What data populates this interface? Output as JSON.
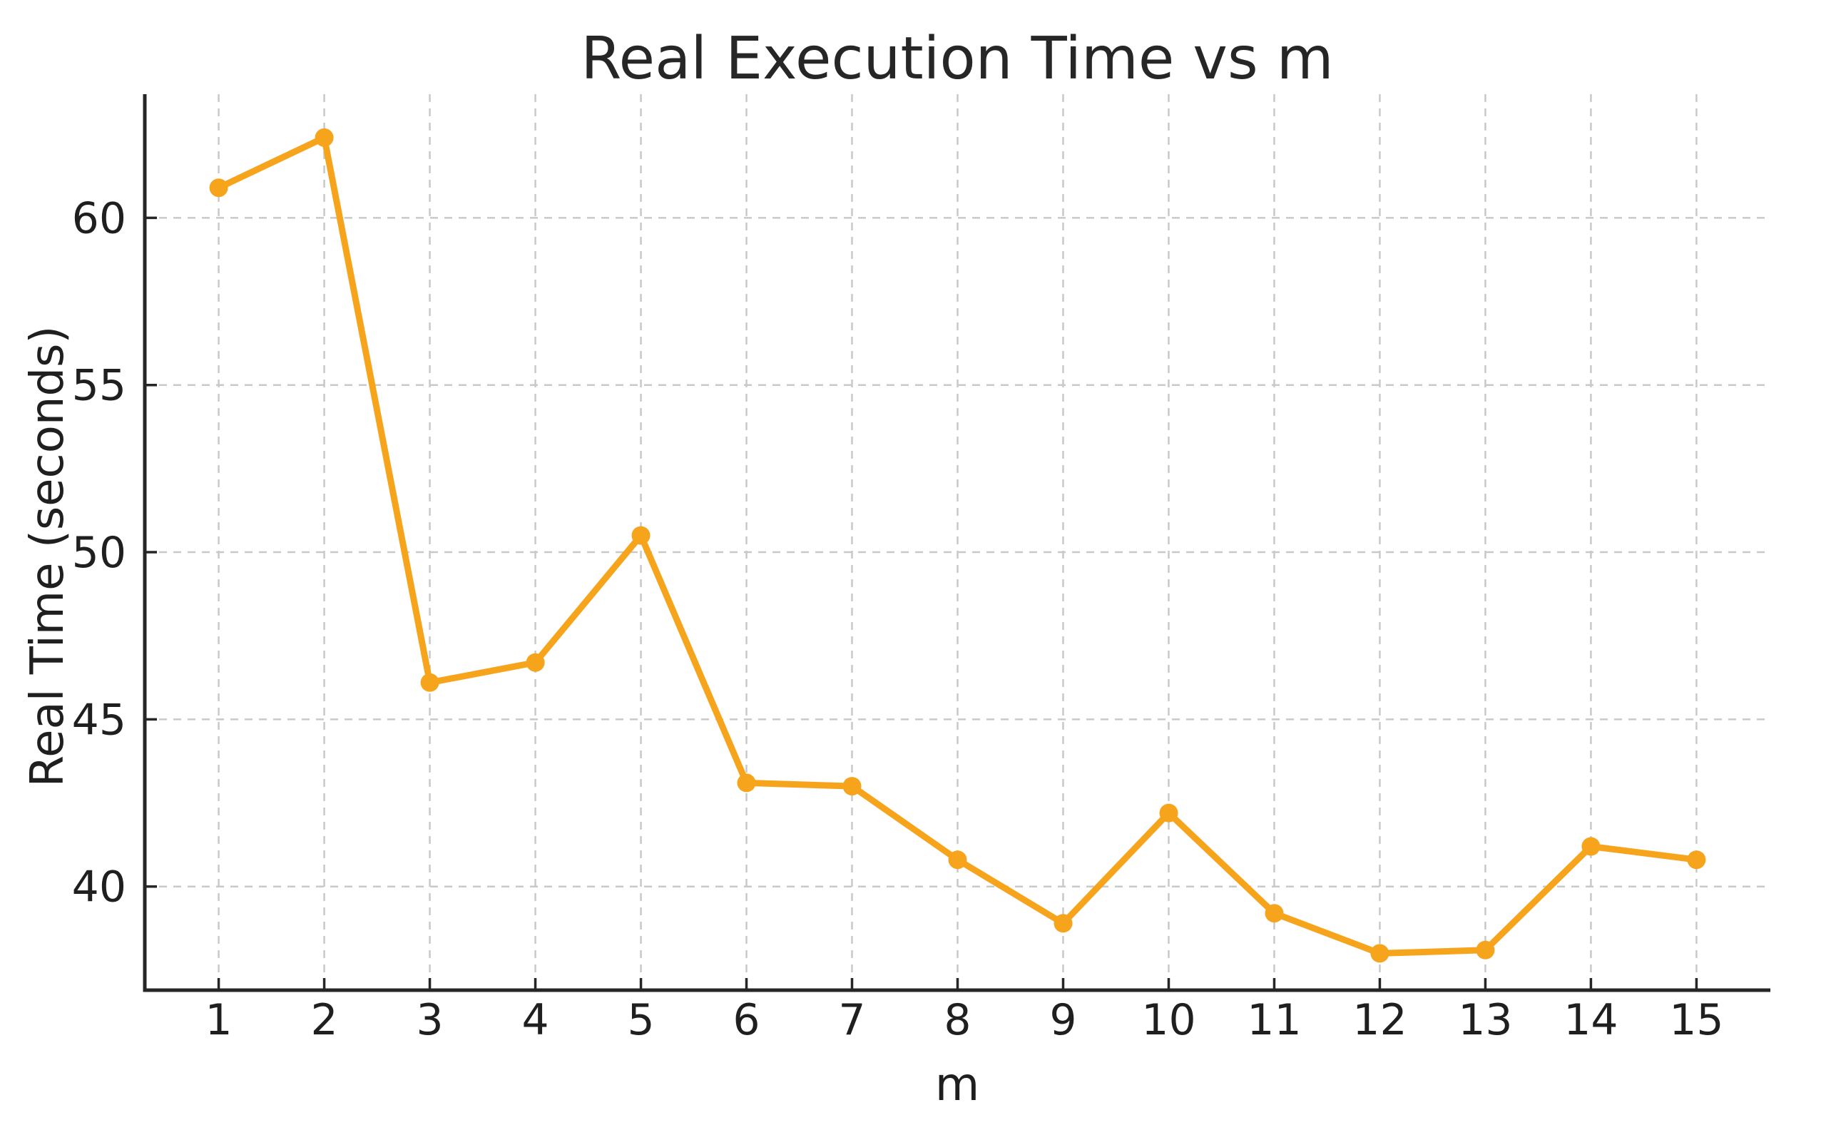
{
  "chart_data": {
    "type": "line",
    "title": "Real Execution Time vs m",
    "xlabel": "m",
    "ylabel": "Real Time (seconds)",
    "x": [
      1,
      2,
      3,
      4,
      5,
      6,
      7,
      8,
      9,
      10,
      11,
      12,
      13,
      14,
      15
    ],
    "series": [
      {
        "name": "Real Time (seconds)",
        "values": [
          60.9,
          62.4,
          46.1,
          46.7,
          50.5,
          43.1,
          43.0,
          40.8,
          38.9,
          42.2,
          39.2,
          38.0,
          38.1,
          41.2,
          40.8
        ]
      }
    ],
    "x_ticks": [
      1,
      2,
      3,
      4,
      5,
      6,
      7,
      8,
      9,
      10,
      11,
      12,
      13,
      14,
      15
    ],
    "y_ticks": [
      40,
      45,
      50,
      55,
      60
    ],
    "xlim": [
      0.3,
      15.7
    ],
    "ylim": [
      36.9,
      63.7
    ],
    "grid": "dashed, both axes",
    "legend": "none",
    "line_color": "#F7A41D",
    "marker": "circle",
    "marker_color": "#F7A41D",
    "grid_color": "#c9c9c9",
    "axis_color": "#262626",
    "text_color": "#1f1f1f",
    "background_color": "#ffffff"
  }
}
